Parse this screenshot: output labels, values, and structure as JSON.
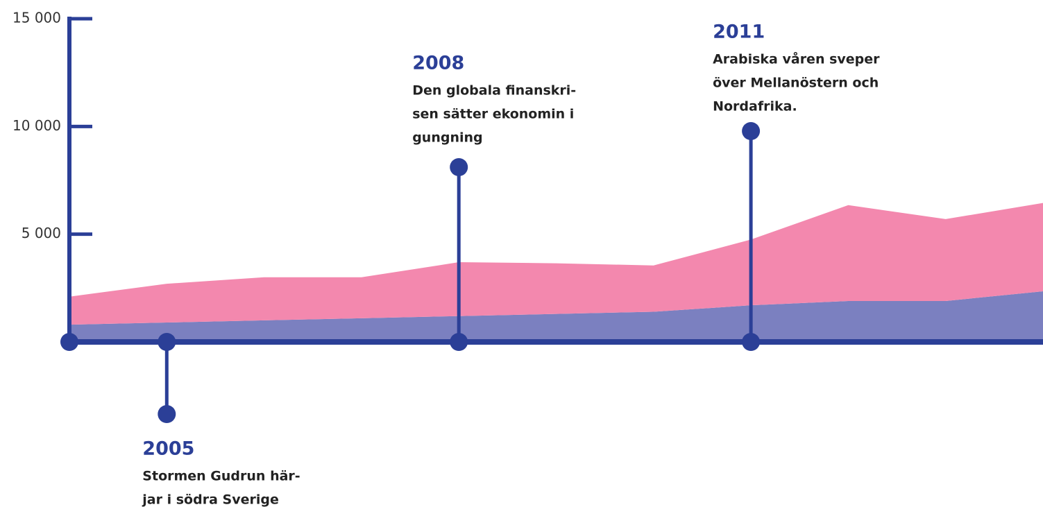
{
  "chart_data": {
    "type": "area",
    "x": [
      2004,
      2005,
      2006,
      2007,
      2008,
      2009,
      2010,
      2011,
      2012,
      2013,
      2014
    ],
    "xlim": [
      2004,
      2014
    ],
    "series": [
      {
        "color": "#7b80c0",
        "values": [
          800,
          900,
          1000,
          1100,
          1200,
          1300,
          1400,
          1700,
          1900,
          1900,
          2350
        ]
      },
      {
        "color": "#f388ae",
        "values": [
          1300,
          1800,
          2000,
          1900,
          2500,
          2350,
          2150,
          3050,
          4450,
          3800,
          4100
        ]
      }
    ],
    "stacked": true,
    "ylim": [
      0,
      15000
    ],
    "yticks": [
      {
        "value": 5000,
        "label": "5 000"
      },
      {
        "value": 10000,
        "label": "10 000"
      },
      {
        "value": 15000,
        "label": "15 000"
      }
    ],
    "axis_color": "#2b3f97",
    "annotations": [
      {
        "x": 2005,
        "title": "2005",
        "lines": [
          "Stormen Gudrun här-",
          "jar i södra Sverige"
        ]
      },
      {
        "x": 2008,
        "title": "2008",
        "lines": [
          "Den globala finanskri-",
          "sen sätter ekonomin i",
          "gungning"
        ]
      },
      {
        "x": 2011,
        "title": "2011",
        "lines": [
          "Arabiska våren sveper",
          "över Mellanöstern och",
          "Nordafrika."
        ]
      }
    ]
  }
}
